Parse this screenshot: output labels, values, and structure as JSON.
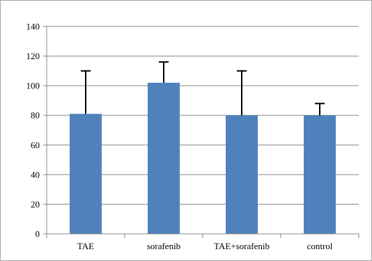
{
  "chart_data": {
    "type": "bar",
    "categories": [
      "TAE",
      "sorafenib",
      "TAE+sorafenib",
      "control"
    ],
    "values": [
      81,
      102,
      80,
      80
    ],
    "error_upper": [
      29,
      14,
      30,
      8
    ],
    "title": "",
    "xlabel": "",
    "ylabel": "",
    "ylim": [
      0,
      140
    ],
    "yticks": [
      0,
      20,
      40,
      60,
      80,
      100,
      120,
      140
    ],
    "grid": true,
    "legend": "none",
    "colors": {
      "bar": "#4f81bd",
      "gridline": "#868686",
      "axis": "#868686",
      "error_bar": "#000000"
    }
  }
}
